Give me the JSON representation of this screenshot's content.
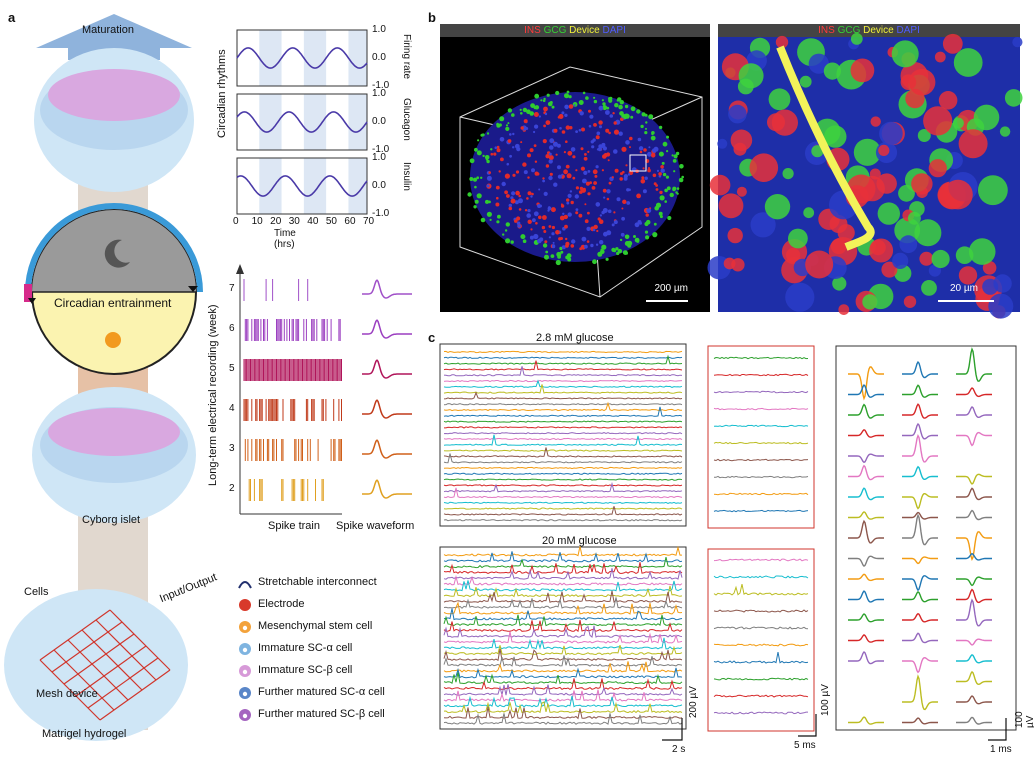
{
  "panels": {
    "a": "a",
    "b": "b",
    "c": "c"
  },
  "panel_a": {
    "maturation": "Maturation",
    "circadian_entrainment": "Circadian entrainment",
    "cyborg_islet": "Cyborg islet",
    "cells": "Cells",
    "input_output": "Input/Output",
    "mesh_device": "Mesh device",
    "matrigel": "Matrigel hydrogel",
    "rhythms_ylabel": "Circadian rhythms",
    "rhythm_panels": [
      {
        "label": "Firing rate",
        "ticks": [
          "1.0",
          "0.0",
          "-1.0"
        ]
      },
      {
        "label": "Glucagon",
        "ticks": [
          "1.0",
          "0.0",
          "-1.0"
        ]
      },
      {
        "label": "Insulin",
        "ticks": [
          "1.0",
          "0.0",
          "-1.0"
        ]
      }
    ],
    "time_ticks": [
      "0",
      "10",
      "20",
      "30",
      "40",
      "50",
      "60",
      "70"
    ],
    "time_label": "Time (hrs)",
    "recording_ylabel": "Long-term electrical recording (week)",
    "weeks": [
      "7",
      "6",
      "5",
      "4",
      "3",
      "2"
    ],
    "spike_train": "Spike train",
    "spike_waveform": "Spike waveform",
    "legend": [
      {
        "icon": "interconnect-icon",
        "label": "Stretchable interconnect"
      },
      {
        "icon": "electrode-icon",
        "label": "Electrode"
      },
      {
        "icon": "mesenchymal-stem-cell-icon",
        "label": "Mesenchymal stem cell"
      },
      {
        "icon": "immature-sc-alpha-icon",
        "label": "Immature SC-α cell"
      },
      {
        "icon": "immature-sc-beta-icon",
        "label": "Immature SC-β cell"
      },
      {
        "icon": "matured-sc-alpha-icon",
        "label": "Further matured SC-α cell"
      },
      {
        "icon": "matured-sc-beta-icon",
        "label": "Further matured SC-β cell"
      }
    ]
  },
  "panel_b": {
    "title_parts": [
      {
        "text": "INS",
        "color": "#ff3b3b"
      },
      {
        "text": " GCG",
        "color": "#35d035"
      },
      {
        "text": " Device",
        "color": "#f2f23a"
      },
      {
        "text": " DAPI",
        "color": "#4f5cff"
      }
    ],
    "scale_left": "200 µm",
    "scale_right": "20 µm"
  },
  "panel_c": {
    "low_glucose": "2.8 mM glucose",
    "high_glucose": "20 mM glucose",
    "scale_left_v": "200 µV",
    "scale_left_t": "2 s",
    "scale_mid_v": "100 µV",
    "scale_mid_t": "5 ms",
    "scale_right_v": "100 µV",
    "scale_right_t": "1 ms"
  },
  "colors": {
    "trace_palette": [
      "#f39c12",
      "#1f77b4",
      "#2ca02c",
      "#d62728",
      "#9467bd",
      "#e377c2",
      "#17becf",
      "#bcbd22",
      "#8c564b",
      "#7f7f7f"
    ],
    "rhythm_line": "#4a3aa8",
    "week_colors": [
      "#a050c8",
      "#9b3fc0",
      "#b0155a",
      "#c03a1a",
      "#d0601a",
      "#e0a020"
    ]
  }
}
